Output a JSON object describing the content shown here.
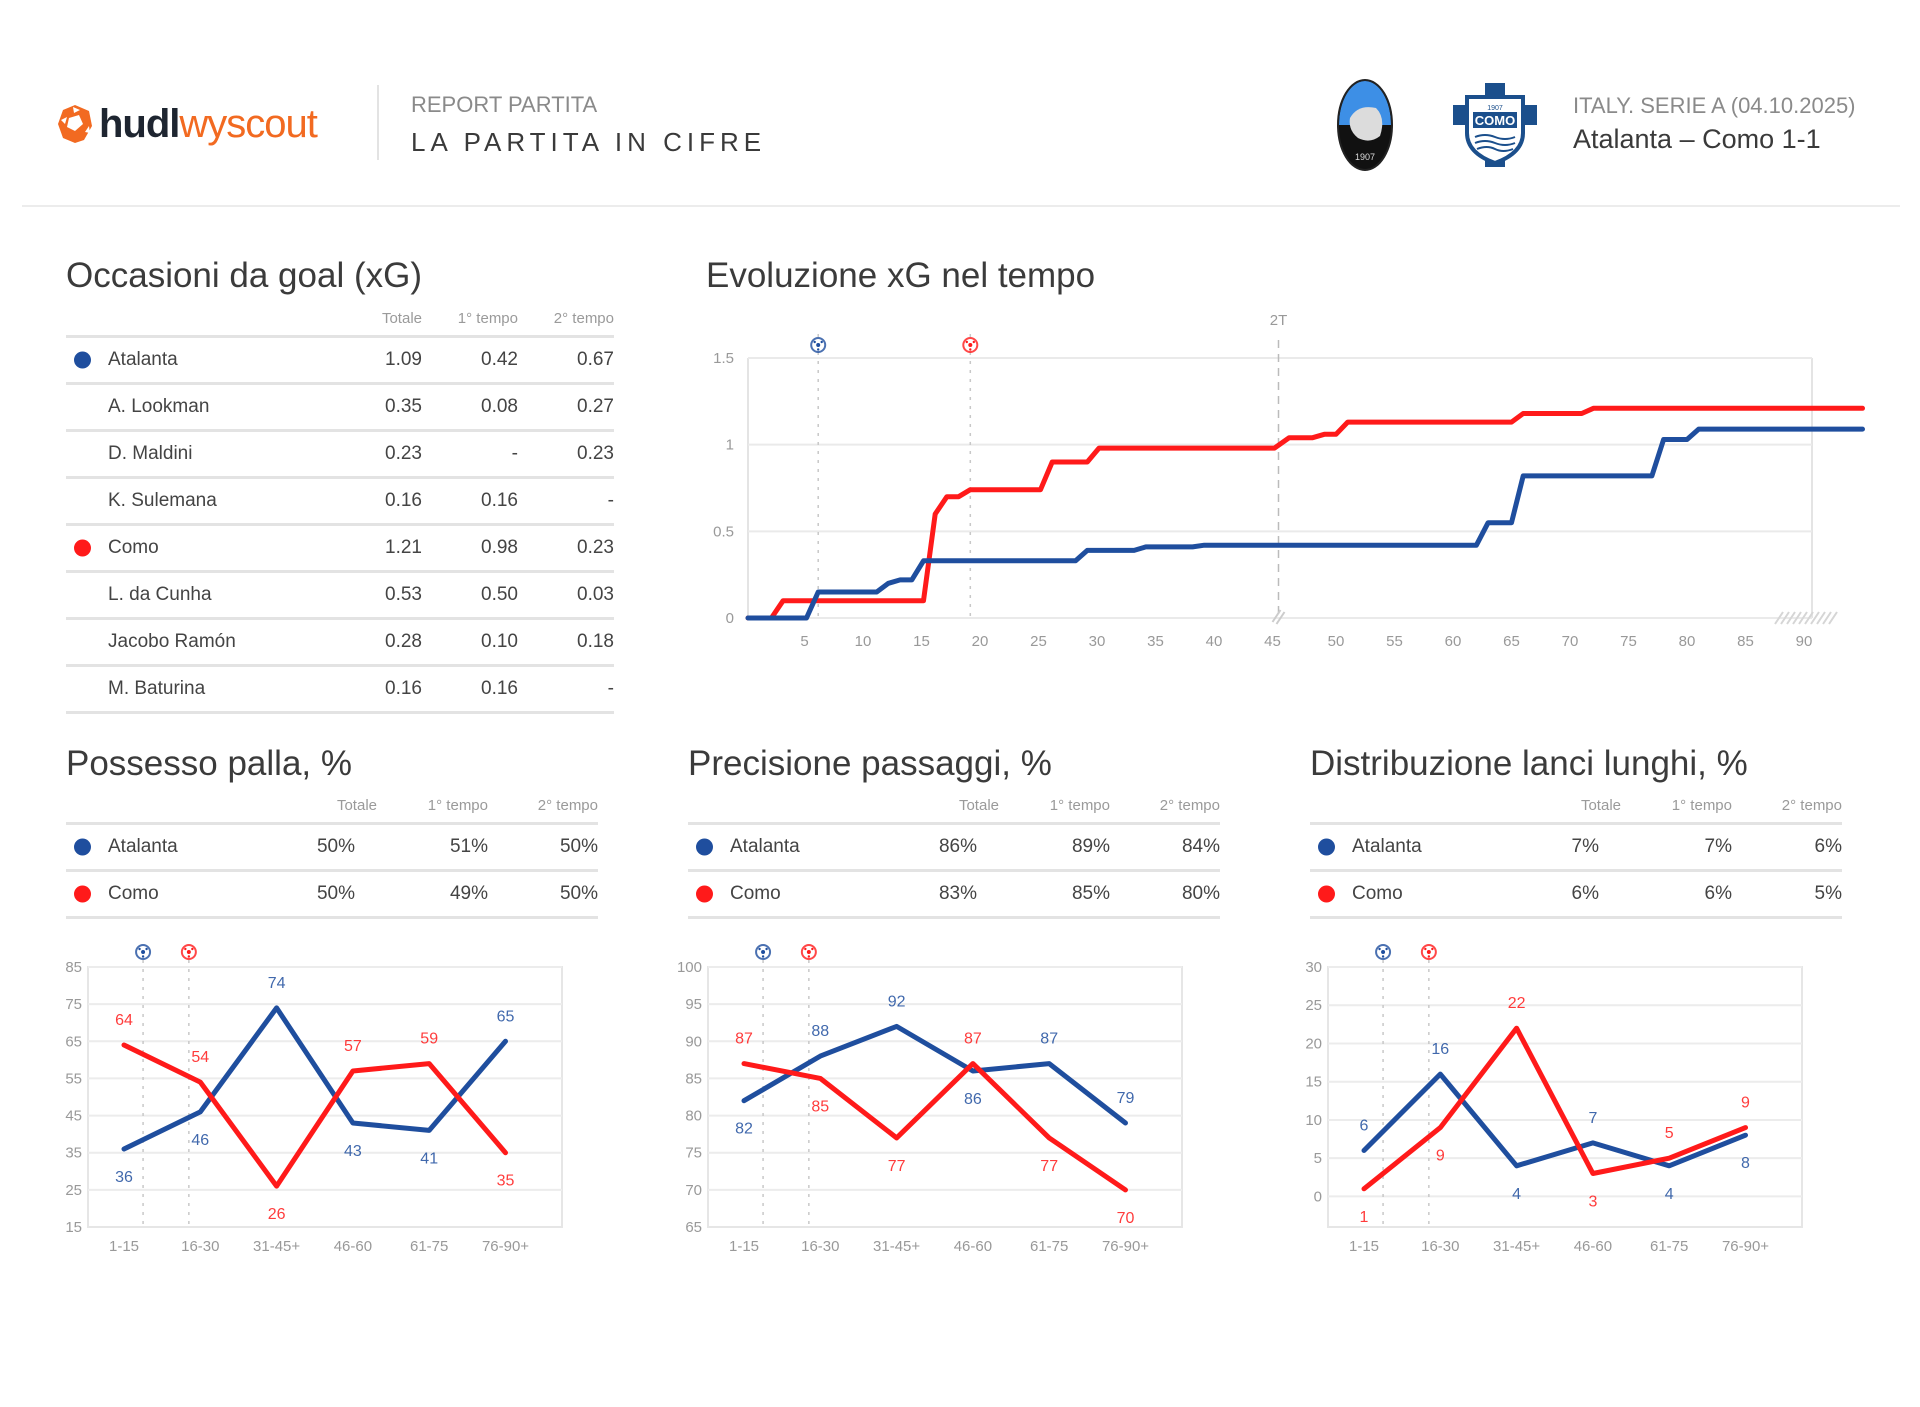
{
  "header": {
    "brand_bold": "hudl",
    "brand_light": "wyscout",
    "report_subtitle": "REPORT PARTITA",
    "report_title": "LA PARTITA IN CIFRE",
    "league_date": "ITALY. SERIE A (04.10.2025)",
    "match_result": "Atalanta – Como 1-1",
    "home_crest": "atalanta-crest",
    "away_crest": "como-crest",
    "away_crest_text": "COMO",
    "away_crest_year": "1907"
  },
  "colors": {
    "atalanta": "#1f4e9e",
    "como": "#ff1a1a",
    "brand_orange": "#f26a21"
  },
  "columns": [
    "Totale",
    "1° tempo",
    "2° tempo"
  ],
  "xg_table": {
    "title": "Occasioni da goal (xG)",
    "rows": [
      {
        "name": "Atalanta",
        "team": "atalanta",
        "is_team": true,
        "total": "1.09",
        "h1": "0.42",
        "h2": "0.67"
      },
      {
        "name": "A. Lookman",
        "team": "atalanta",
        "is_team": false,
        "total": "0.35",
        "h1": "0.08",
        "h2": "0.27"
      },
      {
        "name": "D. Maldini",
        "team": "atalanta",
        "is_team": false,
        "total": "0.23",
        "h1": "-",
        "h2": "0.23"
      },
      {
        "name": "K. Sulemana",
        "team": "atalanta",
        "is_team": false,
        "total": "0.16",
        "h1": "0.16",
        "h2": "-"
      },
      {
        "name": "Como",
        "team": "como",
        "is_team": true,
        "total": "1.21",
        "h1": "0.98",
        "h2": "0.23"
      },
      {
        "name": "L. da Cunha",
        "team": "como",
        "is_team": false,
        "total": "0.53",
        "h1": "0.50",
        "h2": "0.03"
      },
      {
        "name": "Jacobo Ramón",
        "team": "como",
        "is_team": false,
        "total": "0.28",
        "h1": "0.10",
        "h2": "0.18"
      },
      {
        "name": "M. Baturina",
        "team": "como",
        "is_team": false,
        "total": "0.16",
        "h1": "0.16",
        "h2": "-"
      }
    ]
  },
  "possession_table": {
    "title": "Possesso palla, %",
    "rows": [
      {
        "name": "Atalanta",
        "team": "atalanta",
        "total": "50%",
        "h1": "51%",
        "h2": "50%"
      },
      {
        "name": "Como",
        "team": "como",
        "total": "50%",
        "h1": "49%",
        "h2": "50%"
      }
    ]
  },
  "passing_table": {
    "title": "Precisione passaggi, %",
    "rows": [
      {
        "name": "Atalanta",
        "team": "atalanta",
        "total": "86%",
        "h1": "89%",
        "h2": "84%"
      },
      {
        "name": "Como",
        "team": "como",
        "total": "83%",
        "h1": "85%",
        "h2": "80%"
      }
    ]
  },
  "longballs_table": {
    "title": "Distribuzione lanci lunghi, %",
    "rows": [
      {
        "name": "Atalanta",
        "team": "atalanta",
        "total": "7%",
        "h1": "7%",
        "h2": "6%"
      },
      {
        "name": "Como",
        "team": "como",
        "total": "6%",
        "h1": "6%",
        "h2": "5%"
      }
    ]
  },
  "chart_data": [
    {
      "id": "xg_timeline",
      "type": "line",
      "title": "Evoluzione xG nel tempo",
      "xlabel": "",
      "ylabel": "",
      "x_ticks": [
        5,
        10,
        15,
        20,
        25,
        30,
        35,
        40,
        45,
        50,
        55,
        60,
        65,
        70,
        75,
        80,
        85,
        90
      ],
      "y_ticks": [
        0,
        0.5,
        1,
        1.5
      ],
      "y_tick_labels": [
        "0",
        "0.5",
        "1",
        "1.5"
      ],
      "ylim": [
        0,
        1.5
      ],
      "xlim": [
        0,
        96
      ],
      "step": true,
      "half_time_label": "2T",
      "half_time_minute": 45,
      "goals": [
        {
          "team": "atalanta",
          "minute": 6
        },
        {
          "team": "como",
          "minute": 19
        }
      ],
      "series": [
        {
          "name": "Como",
          "team": "como",
          "points": [
            [
              0,
              0
            ],
            [
              2,
              0
            ],
            [
              3,
              0.1
            ],
            [
              15,
              0.1
            ],
            [
              16,
              0.6
            ],
            [
              17,
              0.7
            ],
            [
              18,
              0.7
            ],
            [
              19,
              0.74
            ],
            [
              25,
              0.74
            ],
            [
              26,
              0.9
            ],
            [
              29,
              0.9
            ],
            [
              30,
              0.98
            ],
            [
              45,
              0.98
            ],
            [
              46,
              1.04
            ],
            [
              48,
              1.04
            ],
            [
              49,
              1.06
            ],
            [
              50,
              1.06
            ],
            [
              51,
              1.13
            ],
            [
              65,
              1.13
            ],
            [
              66,
              1.18
            ],
            [
              71,
              1.18
            ],
            [
              72,
              1.21
            ],
            [
              95,
              1.21
            ]
          ]
        },
        {
          "name": "Atalanta",
          "team": "atalanta",
          "points": [
            [
              0,
              0
            ],
            [
              5,
              0
            ],
            [
              6,
              0.15
            ],
            [
              11,
              0.15
            ],
            [
              12,
              0.2
            ],
            [
              13,
              0.22
            ],
            [
              14,
              0.22
            ],
            [
              15,
              0.33
            ],
            [
              28,
              0.33
            ],
            [
              29,
              0.39
            ],
            [
              33,
              0.39
            ],
            [
              34,
              0.41
            ],
            [
              38,
              0.41
            ],
            [
              39,
              0.42
            ],
            [
              62,
              0.42
            ],
            [
              63,
              0.55
            ],
            [
              65,
              0.55
            ],
            [
              66,
              0.82
            ],
            [
              77,
              0.82
            ],
            [
              78,
              1.03
            ],
            [
              80,
              1.03
            ],
            [
              81,
              1.09
            ],
            [
              95,
              1.09
            ]
          ]
        }
      ]
    },
    {
      "id": "possession",
      "type": "line",
      "title": "Possesso palla, %",
      "categories": [
        "1-15",
        "16-30",
        "31-45+",
        "46-60",
        "61-75",
        "76-90+"
      ],
      "y_ticks": [
        15,
        25,
        35,
        45,
        55,
        65,
        75,
        85
      ],
      "ylim": [
        15,
        85
      ],
      "goals": [
        {
          "team": "atalanta",
          "position": 0.25
        },
        {
          "team": "como",
          "position": 0.85
        }
      ],
      "series": [
        {
          "name": "Atalanta",
          "team": "atalanta",
          "values": [
            36,
            46,
            74,
            43,
            41,
            65
          ],
          "label_pos": [
            "below",
            "below",
            "above",
            "below",
            "below",
            "above"
          ]
        },
        {
          "name": "Como",
          "team": "como",
          "values": [
            64,
            54,
            26,
            57,
            59,
            35
          ],
          "label_pos": [
            "above",
            "above",
            "below",
            "above",
            "above",
            "below"
          ]
        }
      ]
    },
    {
      "id": "passing_accuracy",
      "type": "line",
      "title": "Precisione passaggi, %",
      "categories": [
        "1-15",
        "16-30",
        "31-45+",
        "46-60",
        "61-75",
        "76-90+"
      ],
      "y_ticks": [
        65,
        70,
        75,
        80,
        85,
        90,
        95,
        100
      ],
      "ylim": [
        65,
        100
      ],
      "goals": [
        {
          "team": "atalanta",
          "position": 0.25
        },
        {
          "team": "como",
          "position": 0.85
        }
      ],
      "series": [
        {
          "name": "Atalanta",
          "team": "atalanta",
          "values": [
            82,
            88,
            92,
            86,
            87,
            79
          ],
          "label_pos": [
            "below",
            "above",
            "above",
            "below",
            "above",
            "above"
          ]
        },
        {
          "name": "Como",
          "team": "como",
          "values": [
            87,
            85,
            77,
            87,
            77,
            70
          ],
          "label_pos": [
            "above",
            "below",
            "below",
            "above",
            "below",
            "below"
          ]
        }
      ]
    },
    {
      "id": "long_balls",
      "type": "line",
      "title": "Distribuzione lanci lunghi, %",
      "categories": [
        "1-15",
        "16-30",
        "31-45+",
        "46-60",
        "61-75",
        "76-90+"
      ],
      "y_ticks": [
        0,
        5,
        10,
        15,
        20,
        25,
        30
      ],
      "ylim": [
        -4,
        30
      ],
      "goals": [
        {
          "team": "atalanta",
          "position": 0.25
        },
        {
          "team": "como",
          "position": 0.85
        }
      ],
      "series": [
        {
          "name": "Atalanta",
          "team": "atalanta",
          "values": [
            6,
            16,
            4,
            7,
            4,
            8
          ],
          "label_pos": [
            "above",
            "above",
            "below",
            "above",
            "below",
            "below"
          ]
        },
        {
          "name": "Como",
          "team": "como",
          "values": [
            1,
            9,
            22,
            3,
            5,
            9
          ],
          "label_pos": [
            "below",
            "below",
            "above",
            "below",
            "above",
            "above"
          ]
        }
      ]
    }
  ]
}
